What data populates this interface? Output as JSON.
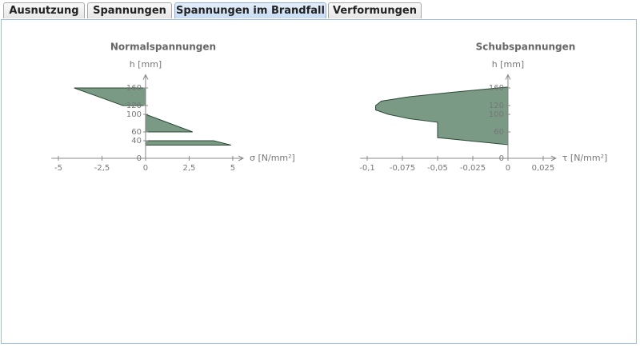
{
  "tabs": [
    "Ausnutzung",
    "Spannungen",
    "Spannungen im Brandfall",
    "Verformungen"
  ],
  "chart_data": [
    {
      "type": "area",
      "title": "Normalspannungen",
      "xlabel": "σ [N/mm²]",
      "ylabel": "h [mm]",
      "xlim": [
        -5.4,
        5.6
      ],
      "ylim": [
        0,
        190
      ],
      "xticks": [
        -5,
        {
          "value": -2.5,
          "label": "-2,5"
        },
        0,
        {
          "value": 2.5,
          "label": "2,5"
        },
        5
      ],
      "yticks": [
        0,
        40,
        60,
        100,
        120,
        160
      ],
      "series": [
        {
          "color": "#7a9a85",
          "x": [
            0,
            -4.1,
            -1.3,
            0
          ],
          "values": [
            160,
            160,
            120,
            120
          ]
        },
        {
          "color": "#7a9a85",
          "x": [
            0,
            2.7,
            0
          ],
          "values": [
            100,
            60,
            60
          ]
        },
        {
          "color": "#7a9a85",
          "x": [
            0,
            3.9,
            4.9,
            0
          ],
          "values": [
            40,
            40,
            30,
            30
          ]
        }
      ]
    },
    {
      "type": "area",
      "title": "Schubspannungen",
      "xlabel": "τ [N/mm²]",
      "ylabel": "h [mm]",
      "xlim": [
        -0.105,
        0.034
      ],
      "ylim": [
        0,
        190
      ],
      "xticks": [
        {
          "value": -0.1,
          "label": "-0,1"
        },
        {
          "value": -0.075,
          "label": "-0,075"
        },
        {
          "value": -0.05,
          "label": "-0,05"
        },
        {
          "value": -0.025,
          "label": "-0,025"
        },
        0,
        {
          "value": 0.025,
          "label": "0,025"
        }
      ],
      "yticks": [
        0,
        60,
        100,
        120,
        160
      ],
      "series": [
        {
          "color": "#7a9a85",
          "x": [
            0,
            -0.04,
            -0.07,
            -0.09,
            -0.094,
            -0.094,
            -0.085,
            -0.07,
            -0.05,
            -0.05,
            0
          ],
          "values": [
            162,
            150,
            140,
            130,
            120,
            110,
            100,
            90,
            82,
            47,
            31
          ]
        }
      ]
    }
  ]
}
